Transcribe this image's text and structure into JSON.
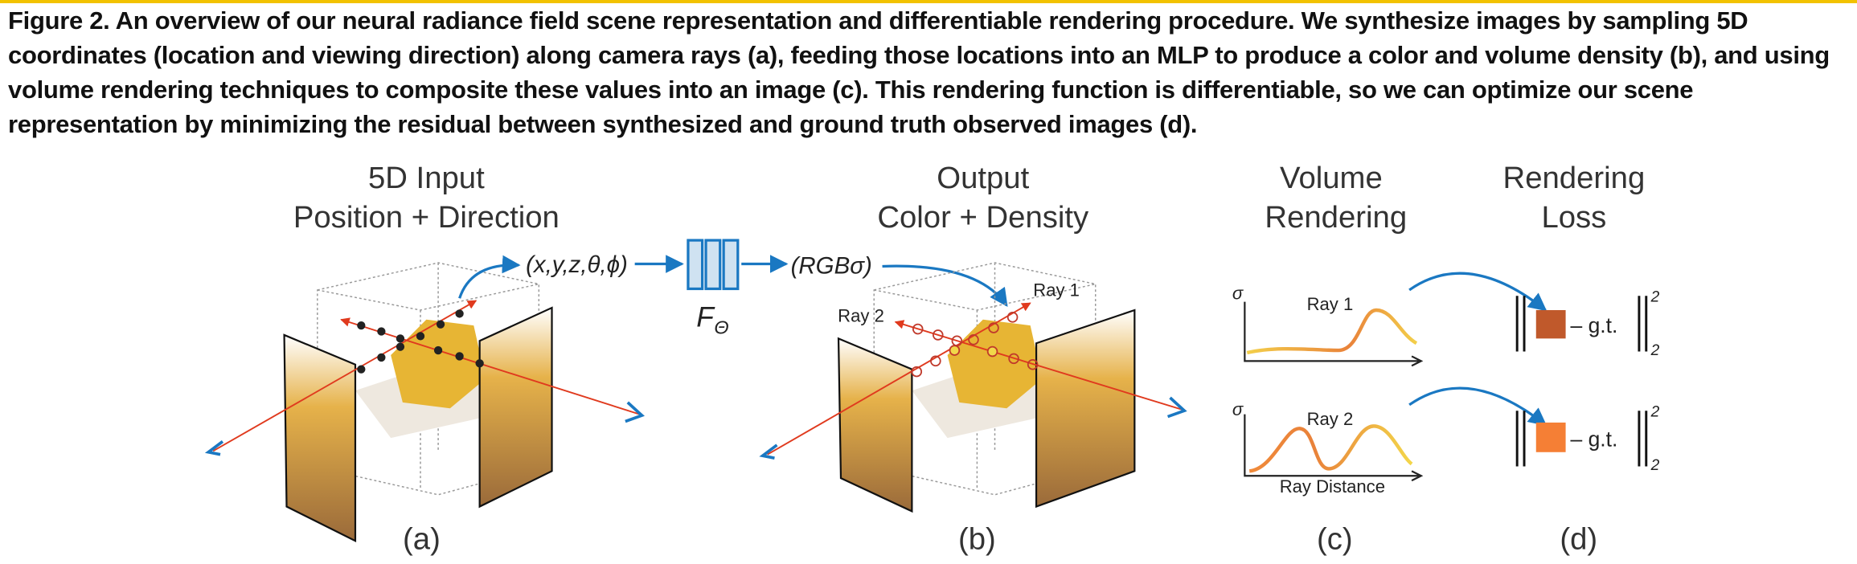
{
  "caption": "Figure 2. An overview of our neural radiance field scene representation and differentiable rendering procedure. We synthesize images by sampling 5D coordinates (location and viewing direction) along camera rays (a), feeding those locations into an MLP to produce a color and volume density (b), and using volume rendering techniques to composite these values into an image (c). This rendering function is differentiable, so we can optimize our scene representation by minimizing the residual between synthesized and ground truth observed images (d).",
  "panel_a": {
    "title_line1": "5D Input",
    "title_line2": "Position + Direction",
    "input": "(x,y,z,θ,ϕ)",
    "label": "(a)"
  },
  "network": {
    "symbol": "F",
    "subscript": "Θ"
  },
  "panel_b": {
    "title_line1": "Output",
    "title_line2": "Color + Density",
    "output": "(RGBσ)",
    "ray1": "Ray 1",
    "ray2": "Ray 2",
    "label": "(b)"
  },
  "panel_c": {
    "title_line1": "Volume",
    "title_line2": "Rendering",
    "plots": [
      {
        "y_axis": "σ",
        "ray": "Ray 1"
      },
      {
        "y_axis": "σ",
        "ray": "Ray 2",
        "x_axis": "Ray Distance"
      }
    ],
    "label": "(c)"
  },
  "panel_d": {
    "title_line1": "Rendering",
    "title_line2": "Loss",
    "terms": [
      {
        "minus_gt": "– g.t.",
        "sup": "2",
        "sub": "2"
      },
      {
        "minus_gt": "– g.t.",
        "sup": "2",
        "sub": "2"
      }
    ],
    "label": "(d)"
  }
}
